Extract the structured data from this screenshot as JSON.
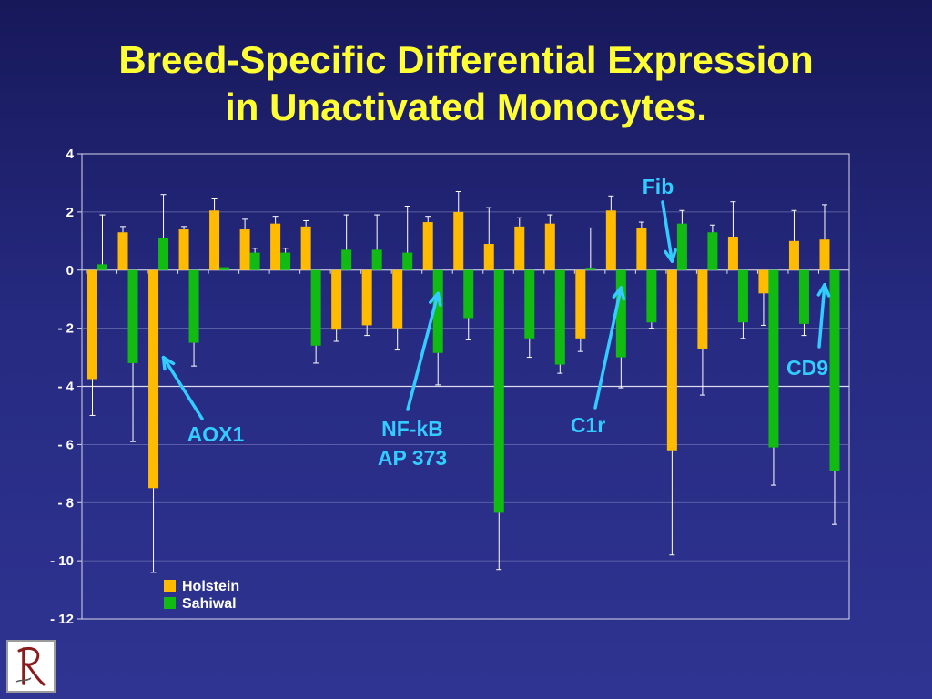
{
  "title_line1": "Breed-Specific Differential Expression",
  "title_line2": "in Unactivated Monocytes.",
  "colors": {
    "holstein": "#ffbb00",
    "sahiwal": "#11bb11",
    "annotation": "#33ccff",
    "title": "#ffff33"
  },
  "chart_data": {
    "type": "bar",
    "ylim": [
      -12,
      4
    ],
    "yticks": [
      4,
      2,
      0,
      -2,
      -4,
      -6,
      -8,
      -10,
      -12
    ],
    "ytick_labels": [
      "4",
      "2",
      "0",
      "- 2",
      "- 4",
      "- 6",
      "- 8",
      "- 10",
      "- 12"
    ],
    "reference_line": -4,
    "legend": [
      "Holstein",
      "Sahiwal"
    ],
    "legend_position": "bottom-left",
    "series": [
      {
        "name": "Holstein",
        "values": [
          -3.75,
          1.3,
          -7.5,
          1.4,
          2.05,
          1.4,
          1.6,
          1.5,
          -2.05,
          -1.9,
          -2.0,
          1.65,
          2.0,
          0.9,
          1.5,
          1.6,
          -2.35,
          2.05,
          1.45,
          -6.2,
          -2.7,
          1.15,
          -0.8,
          1.0,
          1.05
        ],
        "errors": [
          1.25,
          0.2,
          2.9,
          0.1,
          0.4,
          0.35,
          0.25,
          0.2,
          0.4,
          0.35,
          0.75,
          0.2,
          0.7,
          1.25,
          0.3,
          0.3,
          0.45,
          0.5,
          0.2,
          3.6,
          1.6,
          1.2,
          1.1,
          1.05,
          1.2
        ]
      },
      {
        "name": "Sahiwal",
        "values": [
          0.2,
          -3.2,
          1.1,
          -2.5,
          0.1,
          0.6,
          0.6,
          -2.6,
          0.7,
          0.7,
          0.6,
          -2.85,
          -1.65,
          -8.35,
          -2.35,
          -3.25,
          0.05,
          -3.0,
          -1.8,
          1.6,
          1.3,
          -1.8,
          -6.1,
          -1.85,
          -6.9
        ],
        "errors": [
          1.7,
          2.7,
          1.5,
          0.8,
          0.0,
          0.15,
          0.15,
          0.6,
          1.2,
          1.2,
          1.6,
          1.1,
          0.75,
          1.95,
          0.65,
          0.3,
          1.4,
          1.05,
          0.2,
          0.45,
          0.25,
          0.55,
          1.3,
          0.4,
          1.85
        ]
      }
    ],
    "annotations": [
      {
        "label": "AOX1",
        "target": {
          "group": 2,
          "series": "Sahiwal",
          "value": -3.0
        }
      },
      {
        "label": "NF-kB\nAP 373",
        "target": {
          "group": 11,
          "series": "Sahiwal",
          "value": -0.8
        }
      },
      {
        "label": "C1r",
        "target": {
          "group": 17,
          "series": "Sahiwal",
          "value": -0.6
        }
      },
      {
        "label": "Fib",
        "target": {
          "group": 19,
          "series": "Holstein",
          "value": 0.3
        }
      },
      {
        "label": "CD9",
        "target": {
          "group": 24,
          "series": "Holstein",
          "value": -0.5
        }
      }
    ]
  }
}
